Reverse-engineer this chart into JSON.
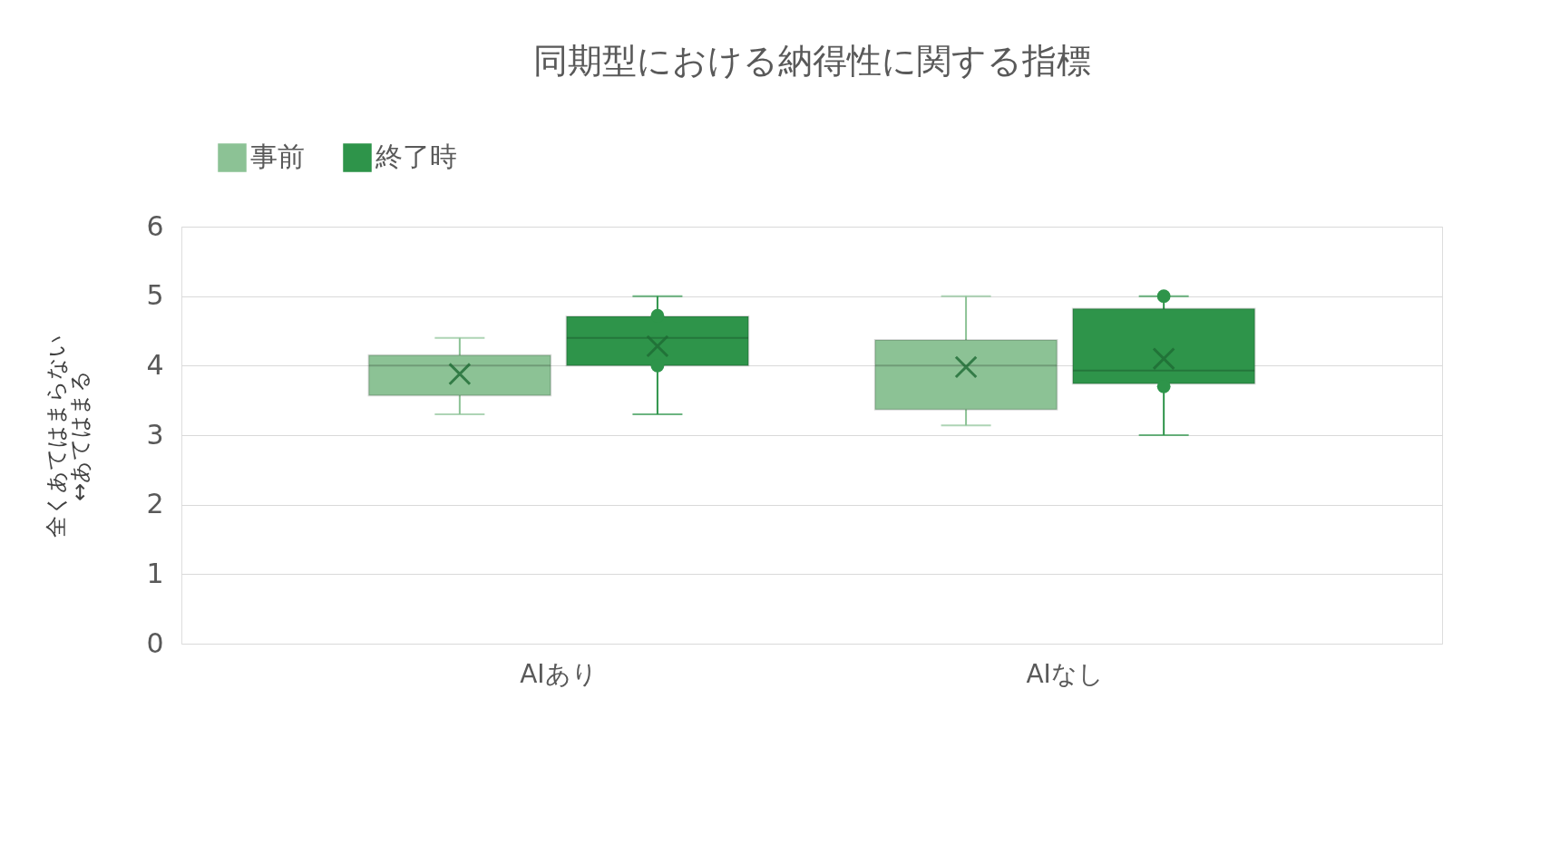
{
  "chart_data": {
    "type": "box",
    "title": "同期型における納得性に関する指標",
    "ylabel": "全くあてはまらない\n↔あてはまる",
    "categories": [
      "AIあり",
      "AIなし"
    ],
    "series": [
      {
        "name": "事前",
        "color": "#8cc295",
        "boxes": [
          {
            "low": 3.3,
            "q1": 3.57,
            "median": 4.0,
            "q3": 4.15,
            "high": 4.4,
            "mean": 3.88
          },
          {
            "low": 3.14,
            "q1": 3.37,
            "median": 4.0,
            "q3": 4.37,
            "high": 5.0,
            "mean": 3.98
          }
        ]
      },
      {
        "name": "終了時",
        "color": "#2e944a",
        "boxes": [
          {
            "low": 3.3,
            "q1": 4.0,
            "median": 4.4,
            "q3": 4.71,
            "high": 5.0,
            "mean": 4.28,
            "outliers": [
              4.72,
              4.0
            ]
          },
          {
            "low": 3.0,
            "q1": 3.74,
            "median": 3.93,
            "q3": 4.82,
            "high": 5.0,
            "mean": 4.1,
            "outliers": [
              5.0,
              3.7
            ]
          }
        ]
      }
    ],
    "ylim": [
      0,
      6
    ],
    "yticks": [
      0,
      1,
      2,
      3,
      4,
      5,
      6
    ],
    "grid": "y",
    "legend": "top"
  }
}
